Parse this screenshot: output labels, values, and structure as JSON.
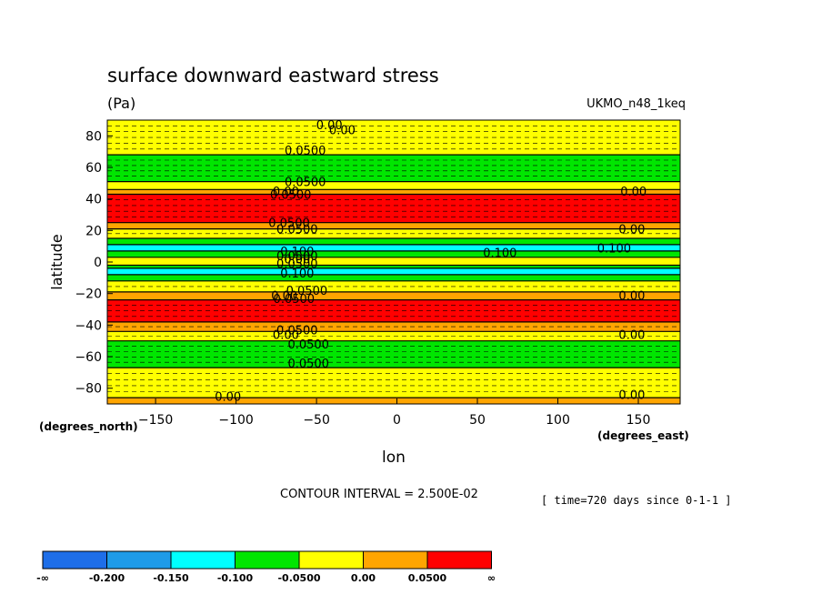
{
  "chart_data": {
    "type": "heatmap",
    "title": "surface downward eastward stress",
    "units": "(Pa)",
    "dataset": "UKMO_n48_1keq",
    "xlabel": "lon",
    "ylabel": "latitude",
    "x_units": "(degrees_east)",
    "y_units": "(degrees_north)",
    "xlim": [
      -180,
      176
    ],
    "ylim": [
      -90,
      90
    ],
    "x_ticks": [
      -150,
      -100,
      -50,
      0,
      50,
      100,
      150
    ],
    "y_ticks": [
      -80,
      -60,
      -40,
      -20,
      0,
      20,
      40,
      60,
      80
    ],
    "contour_interval_label": "CONTOUR INTERVAL = 2.500E-02",
    "time_label": "[ time=720 days since 0-1-1 ]",
    "color_scale": {
      "levels": [
        "-∞",
        "-0.200",
        "-0.150",
        "-0.100",
        "-0.0500",
        "0.00",
        "0.0500",
        "∞"
      ],
      "colors": [
        "#1e6ee8",
        "#1e9be8",
        "#00ffff",
        "#00e600",
        "#ffff00",
        "#ffa500",
        "#ff0000"
      ]
    },
    "zonal_band_fill_colors": "from south to north (latitude ranges, degrees north)",
    "bands": [
      {
        "lat": [
          -90,
          -86
        ],
        "color": "#ffa500"
      },
      {
        "lat": [
          -86,
          -67
        ],
        "color": "#ffff00"
      },
      {
        "lat": [
          -67,
          -50
        ],
        "color": "#00e600"
      },
      {
        "lat": [
          -50,
          -44
        ],
        "color": "#ffff00"
      },
      {
        "lat": [
          -44,
          -38
        ],
        "color": "#ffa500"
      },
      {
        "lat": [
          -38,
          -24
        ],
        "color": "#ff0000"
      },
      {
        "lat": [
          -24,
          -19
        ],
        "color": "#ffa500"
      },
      {
        "lat": [
          -19,
          -12
        ],
        "color": "#ffff00"
      },
      {
        "lat": [
          -12,
          -8
        ],
        "color": "#00e600"
      },
      {
        "lat": [
          -8,
          -4
        ],
        "color": "#00ffff"
      },
      {
        "lat": [
          -4,
          -2
        ],
        "color": "#00e600"
      },
      {
        "lat": [
          -2,
          3
        ],
        "color": "#ffff00"
      },
      {
        "lat": [
          3,
          7
        ],
        "color": "#00e600"
      },
      {
        "lat": [
          7,
          11
        ],
        "color": "#00ffff"
      },
      {
        "lat": [
          11,
          15
        ],
        "color": "#00e600"
      },
      {
        "lat": [
          15,
          21
        ],
        "color": "#ffff00"
      },
      {
        "lat": [
          21,
          25
        ],
        "color": "#ffa500"
      },
      {
        "lat": [
          25,
          43
        ],
        "color": "#ff0000"
      },
      {
        "lat": [
          43,
          46
        ],
        "color": "#ffa500"
      },
      {
        "lat": [
          46,
          51
        ],
        "color": "#ffff00"
      },
      {
        "lat": [
          51,
          68
        ],
        "color": "#00e600"
      },
      {
        "lat": [
          68,
          90
        ],
        "color": "#ffff00"
      }
    ],
    "contour_labels": [
      {
        "text": "0.00",
        "lon": -42,
        "lat": 87
      },
      {
        "text": "0.00",
        "lon": -34,
        "lat": 84
      },
      {
        "text": "0.0500",
        "lon": -57,
        "lat": 71
      },
      {
        "text": "0.0500",
        "lon": -57,
        "lat": 51
      },
      {
        "text": "0.00",
        "lon": -69,
        "lat": 45
      },
      {
        "text": "0.0500",
        "lon": -66,
        "lat": 43
      },
      {
        "text": "0.00",
        "lon": 147,
        "lat": 45
      },
      {
        "text": "0.0500",
        "lon": -67,
        "lat": 25
      },
      {
        "text": "0.0500",
        "lon": -62,
        "lat": 21
      },
      {
        "text": "0.00",
        "lon": 146,
        "lat": 21
      },
      {
        "text": "0.100",
        "lon": -62,
        "lat": 7
      },
      {
        "text": "0.100",
        "lon": 64,
        "lat": 6
      },
      {
        "text": "0.100",
        "lon": 135,
        "lat": 9
      },
      {
        "text": "0.0500",
        "lon": -62,
        "lat": 4
      },
      {
        "text": "0.00",
        "lon": -62,
        "lat": 2
      },
      {
        "text": "0.0500",
        "lon": -62,
        "lat": -1
      },
      {
        "text": "0.100",
        "lon": -62,
        "lat": -7
      },
      {
        "text": "0.0500",
        "lon": -56,
        "lat": -18
      },
      {
        "text": "0.00",
        "lon": -70,
        "lat": -21
      },
      {
        "text": "0.0500",
        "lon": -64,
        "lat": -23
      },
      {
        "text": "0.00",
        "lon": 146,
        "lat": -21
      },
      {
        "text": "0.0500",
        "lon": -62,
        "lat": -43
      },
      {
        "text": "0.00",
        "lon": -69,
        "lat": -46
      },
      {
        "text": "0.00",
        "lon": 146,
        "lat": -46
      },
      {
        "text": "0.0500",
        "lon": -55,
        "lat": -52
      },
      {
        "text": "0.0500",
        "lon": -55,
        "lat": -64
      },
      {
        "text": "0.00",
        "lon": -105,
        "lat": -85
      },
      {
        "text": "0.00",
        "lon": 146,
        "lat": -84
      }
    ]
  }
}
